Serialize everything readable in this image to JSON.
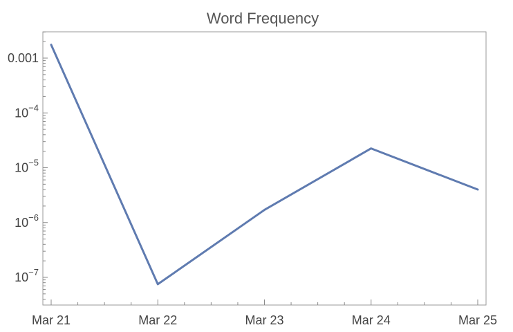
{
  "chart_data": {
    "type": "line",
    "title": "Word Frequency",
    "xlabel": "",
    "ylabel": "",
    "y_scale": "log",
    "grid": false,
    "categories": [
      "Mar 21",
      "Mar 22",
      "Mar 23",
      "Mar 24",
      "Mar 25"
    ],
    "series": [
      {
        "values": [
          0.00175,
          7.5e-08,
          1.7e-06,
          2.25e-05,
          4e-06
        ],
        "color": "#5f7bb0"
      }
    ],
    "y_ticks": [
      {
        "value": 0.001,
        "base": "0.001",
        "exp": ""
      },
      {
        "value": 0.0001,
        "base": "10",
        "exp": "−4"
      },
      {
        "value": 1e-05,
        "base": "10",
        "exp": "−5"
      },
      {
        "value": 1e-06,
        "base": "10",
        "exp": "−6"
      },
      {
        "value": 1e-07,
        "base": "10",
        "exp": "−7"
      }
    ]
  }
}
